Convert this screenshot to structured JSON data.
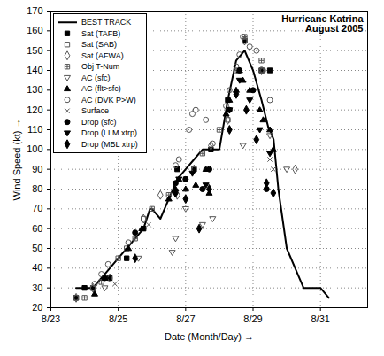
{
  "chart_data": {
    "type": "scatter",
    "title": "Hurricane Katrina",
    "subtitle": "August 2005",
    "x_label": "Date (Month/Day)",
    "y_label": "Wind Speed (kt)",
    "xlim": [
      23,
      32.4
    ],
    "xticks": [
      {
        "value": 23,
        "label": "8/23"
      },
      {
        "value": 25,
        "label": "8/25"
      },
      {
        "value": 27,
        "label": "8/27"
      },
      {
        "value": 29,
        "label": "8/29"
      },
      {
        "value": 31,
        "label": "8/31"
      }
    ],
    "ylim": [
      20,
      170
    ],
    "yticks": [
      20,
      30,
      40,
      50,
      60,
      70,
      80,
      90,
      100,
      110,
      120,
      130,
      140,
      150,
      160,
      170
    ],
    "grid": true,
    "legend": "top-left",
    "series": [
      {
        "name": "BEST TRACK",
        "type": "line",
        "line_style": "solid",
        "color": "#000000",
        "x": [
          23.75,
          24.0,
          24.25,
          24.5,
          24.75,
          25.0,
          25.25,
          25.5,
          25.75,
          25.94,
          26.0,
          26.25,
          26.5,
          26.75,
          27.0,
          27.25,
          27.5,
          27.75,
          28.0,
          28.25,
          28.5,
          28.75,
          29.0,
          29.25,
          29.47,
          29.5,
          29.61,
          29.75,
          30.0,
          30.25,
          30.5,
          30.75,
          31.0,
          31.25
        ],
        "values": [
          30,
          30,
          30,
          35,
          40,
          45,
          50,
          55,
          60,
          70,
          70,
          65,
          75,
          85,
          90,
          95,
          100,
          100,
          100,
          125,
          145,
          150,
          140,
          125,
          110,
          110,
          105,
          80,
          50,
          40,
          30,
          30,
          30,
          25
        ]
      },
      {
        "name": "Sat (TAFB)",
        "type": "scatter",
        "marker": "square",
        "color": "#000000",
        "x": [
          23.75,
          24.0,
          24.25,
          24.75,
          25.25,
          25.75,
          26.75,
          27.25,
          27.75,
          28.25,
          28.75,
          29.25,
          29.5
        ],
        "values": [
          25,
          30,
          30,
          35,
          45,
          60,
          90,
          90,
          100,
          125,
          155,
          140,
          140
        ]
      },
      {
        "name": "Sat (SAB)",
        "type": "scatter",
        "marker": "square-open",
        "color": "#555555",
        "x": [
          23.75,
          24.25,
          25.25,
          25.75,
          27.25,
          28.25,
          28.75,
          29.25
        ],
        "values": [
          25,
          30,
          50,
          65,
          90,
          115,
          155,
          140
        ]
      },
      {
        "name": "Sat (AFWA)",
        "type": "scatter",
        "marker": "diamond-open",
        "color": "#555555",
        "x": [
          23.75,
          24.25,
          24.75,
          25.75,
          26.25,
          26.75,
          27.25,
          27.75,
          28.25,
          28.75,
          29.25,
          30.25
        ],
        "values": [
          25,
          30,
          35,
          65,
          77,
          77,
          90,
          102,
          115,
          155,
          140,
          90
        ]
      },
      {
        "name": "Obj T-Num",
        "type": "scatter",
        "marker": "square-cross",
        "color": "#555555",
        "x": [
          24.0,
          24.5,
          25.0,
          25.5,
          26.0,
          26.5,
          27.0,
          27.5,
          28.0,
          28.5,
          28.75,
          29.25
        ],
        "values": [
          25,
          33,
          45,
          55,
          70,
          77,
          85,
          98,
          110,
          140,
          157,
          145
        ]
      },
      {
        "name": "AC (sfc)",
        "type": "scatter",
        "marker": "triangle-down-open",
        "color": "#555555",
        "x": [
          24.6,
          25.6,
          26.6,
          26.7,
          27.0,
          27.5,
          27.8,
          28.7,
          29.5,
          30.0
        ],
        "values": [
          30,
          45,
          48,
          55,
          70,
          62,
          65,
          102,
          107,
          90
        ]
      },
      {
        "name": "AC (flt>sfc)",
        "type": "scatter",
        "marker": "triangle",
        "color": "#000000",
        "x": [
          24.3,
          24.6,
          25.3,
          25.7,
          26.5,
          26.7,
          26.8,
          27.0,
          27.3,
          27.6,
          27.7,
          28.2,
          28.3,
          28.5,
          28.6,
          28.7,
          28.9,
          29.2,
          29.3,
          29.5,
          29.6
        ],
        "values": [
          27,
          35,
          50,
          60,
          75,
          80,
          85,
          80,
          82,
          90,
          78,
          118,
          125,
          130,
          140,
          135,
          130,
          120,
          115,
          110,
          100
        ]
      },
      {
        "name": "AC (DVK P>W)",
        "type": "scatter",
        "marker": "circle-open",
        "color": "#555555",
        "x": [
          24.3,
          24.5,
          24.7,
          25.3,
          26.7,
          26.8,
          27.1,
          27.2,
          27.3,
          27.6,
          27.8,
          28.2,
          28.3,
          28.5,
          28.6,
          28.7,
          28.9,
          29.1,
          29.3,
          29.5
        ],
        "values": [
          32,
          37,
          42,
          53,
          92,
          95,
          110,
          118,
          120,
          115,
          103,
          122,
          130,
          142,
          148,
          157,
          152,
          150,
          140,
          125
        ]
      },
      {
        "name": "Surface",
        "type": "scatter",
        "marker": "x",
        "color": "#555555",
        "x": [
          24.9,
          25.9,
          29.5,
          29.6
        ],
        "values": [
          32,
          62,
          95,
          90
        ]
      },
      {
        "name": "Drop (sfc)",
        "type": "scatter",
        "marker": "circle",
        "color": "#000000",
        "x": [
          24.6,
          25.5,
          26.7,
          27.0,
          27.5,
          27.7,
          28.3,
          28.6,
          29.0,
          29.4
        ],
        "values": [
          35,
          58,
          83,
          85,
          80,
          90,
          120,
          140,
          130,
          80
        ]
      },
      {
        "name": "Drop (LLM xtrp)",
        "type": "scatter",
        "marker": "triangle-down",
        "color": "#000000",
        "x": [
          26.8,
          27.2,
          27.6,
          28.3,
          28.6,
          28.9,
          29.2,
          29.5
        ],
        "values": [
          85,
          88,
          82,
          120,
          135,
          125,
          110,
          98
        ]
      },
      {
        "name": "Drop (MBL xtrp)",
        "type": "scatter",
        "marker": "diamond",
        "color": "#000000",
        "x": [
          25.5,
          26.7,
          27.0,
          27.4,
          27.7,
          28.3,
          28.5,
          28.8,
          29.1,
          29.4,
          29.6
        ],
        "values": [
          45,
          78,
          75,
          60,
          80,
          110,
          128,
          120,
          105,
          83,
          78
        ]
      }
    ]
  }
}
